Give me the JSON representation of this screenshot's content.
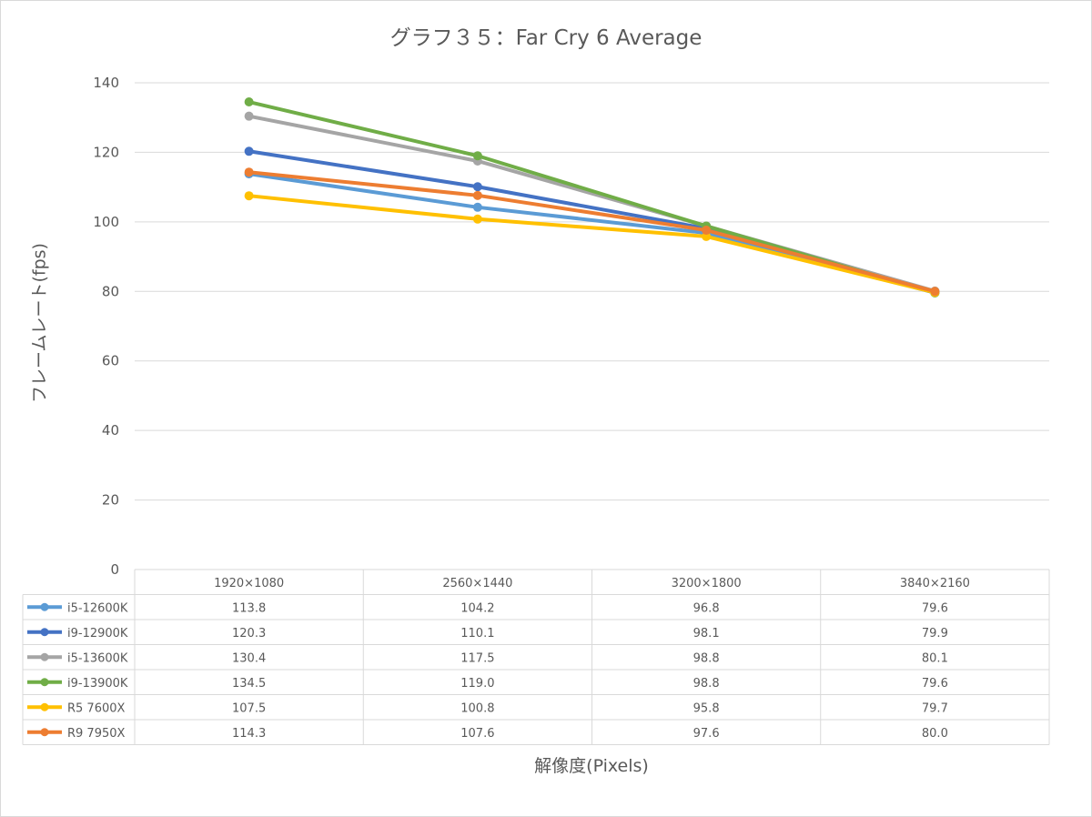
{
  "chart_data": {
    "type": "line",
    "title": "グラフ３５：Far Cry 6 Average",
    "xlabel": "解像度(Pixels)",
    "ylabel": "フレームレート(fps)",
    "ylim": [
      0,
      140
    ],
    "yticks": [
      "0",
      "20",
      "40",
      "60",
      "80",
      "100",
      "120",
      "140"
    ],
    "grid": true,
    "legend_placement": "data table below chart",
    "categories": [
      "1920×1080",
      "2560×1440",
      "3200×1800",
      "3840×2160"
    ],
    "series": [
      {
        "name": "i5-12600K",
        "color": "#5b9bd5",
        "values": [
          113.8,
          104.2,
          96.8,
          79.6
        ],
        "labels": [
          "113.8",
          "104.2",
          "96.8",
          "79.6"
        ]
      },
      {
        "name": "i9-12900K",
        "color": "#4472c4",
        "values": [
          120.3,
          110.1,
          98.1,
          79.9
        ],
        "labels": [
          "120.3",
          "110.1",
          "98.1",
          "79.9"
        ]
      },
      {
        "name": "i5-13600K",
        "color": "#a5a5a5",
        "values": [
          130.4,
          117.5,
          98.8,
          80.1
        ],
        "labels": [
          "130.4",
          "117.5",
          "98.8",
          "80.1"
        ]
      },
      {
        "name": "i9-13900K",
        "color": "#70ad47",
        "values": [
          134.5,
          119.0,
          98.8,
          79.6
        ],
        "labels": [
          "134.5",
          "119.0",
          "98.8",
          "79.6"
        ]
      },
      {
        "name": "R5 7600X",
        "color": "#ffc000",
        "values": [
          107.5,
          100.8,
          95.8,
          79.7
        ],
        "labels": [
          "107.5",
          "100.8",
          "95.8",
          "79.7"
        ]
      },
      {
        "name": "R9 7950X",
        "color": "#ed7d31",
        "values": [
          114.3,
          107.6,
          97.6,
          80.0
        ],
        "labels": [
          "114.3",
          "107.6",
          "97.6",
          "80.0"
        ]
      }
    ]
  }
}
